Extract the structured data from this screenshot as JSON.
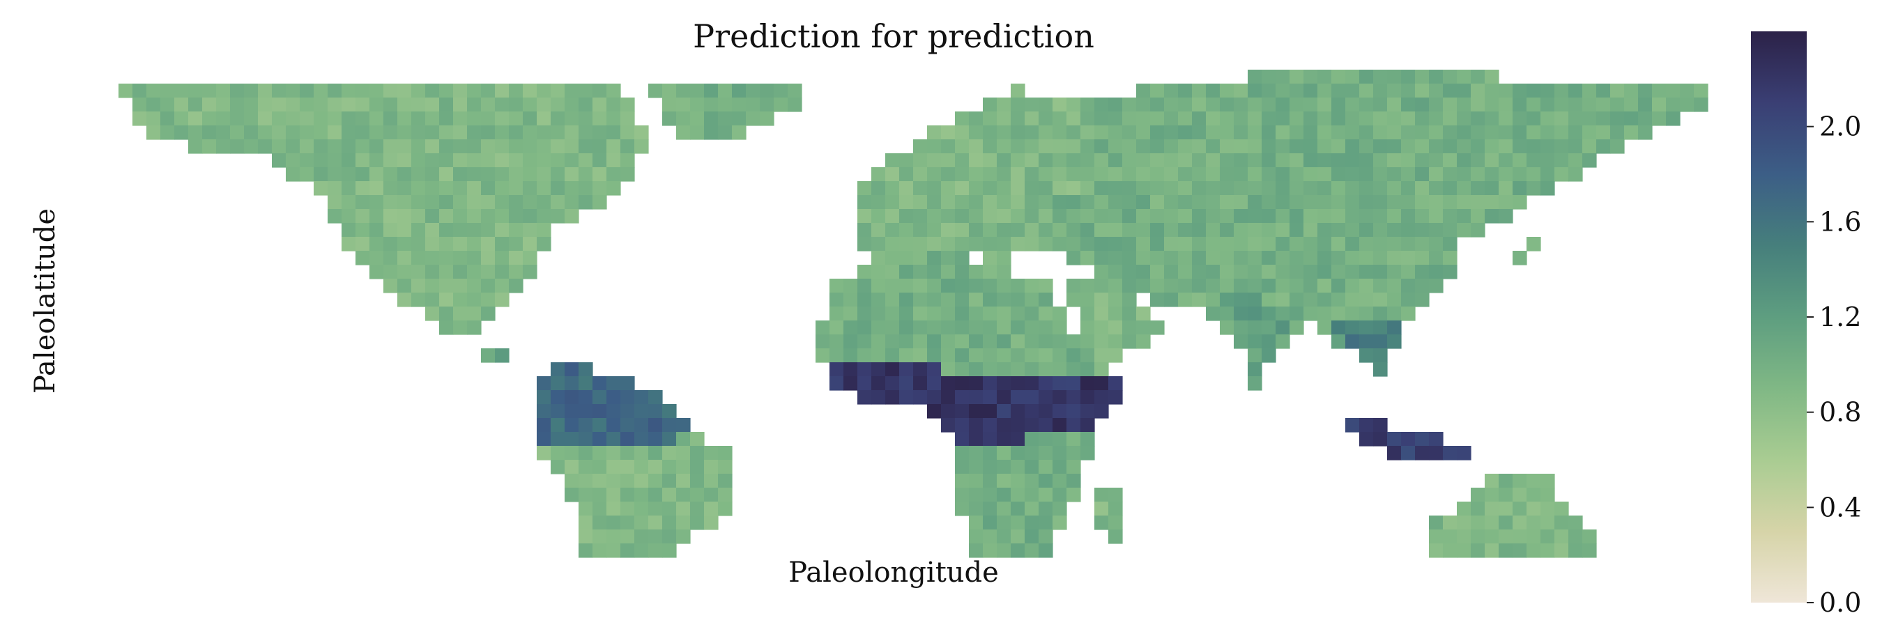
{
  "chart_data": {
    "type": "heatmap",
    "title": "Prediction for prediction",
    "xlabel": "Paleolongitude",
    "ylabel": "Paleolatitude",
    "grid": false,
    "colorbar": {
      "vmin": 0.0,
      "vmax": 2.4,
      "ticks": [
        0.0,
        0.4,
        0.8,
        1.2,
        1.6,
        2.0
      ],
      "tick_labels": [
        "0.0",
        "0.4",
        "0.8",
        "1.2",
        "1.6",
        "2.0"
      ],
      "colors": [
        "#efe6d8",
        "#d6d4a8",
        "#a9cc92",
        "#80b885",
        "#5e9e80",
        "#467f7c",
        "#3c5e86",
        "#3a3f74",
        "#2c2248"
      ]
    },
    "grid_shape": {
      "rows": 36,
      "cols": 118
    },
    "value_description": "Cell values are predicted values; cells with no land are empty.",
    "regions": [
      {
        "name": "north-america",
        "value": 0.9,
        "polygon": [
          [
            -170,
            72
          ],
          [
            -120,
            72
          ],
          [
            -60,
            72
          ],
          [
            -55,
            60
          ],
          [
            -62,
            48
          ],
          [
            -75,
            42
          ],
          [
            -82,
            30
          ],
          [
            -90,
            22
          ],
          [
            -97,
            17
          ],
          [
            -100,
            20
          ],
          [
            -106,
            24
          ],
          [
            -115,
            32
          ],
          [
            -122,
            40
          ],
          [
            -128,
            50
          ],
          [
            -140,
            58
          ],
          [
            -160,
            60
          ],
          [
            -168,
            66
          ]
        ]
      },
      {
        "name": "greenland",
        "value": 1.0,
        "polygon": [
          [
            -56,
            73
          ],
          [
            -20,
            73
          ],
          [
            -22,
            68
          ],
          [
            -40,
            60
          ],
          [
            -48,
            62
          ]
        ]
      },
      {
        "name": "central-america",
        "value": 1.1,
        "polygon": [
          [
            -97,
            17
          ],
          [
            -90,
            17
          ],
          [
            -80,
            9
          ],
          [
            -78,
            8
          ],
          [
            -84,
            12
          ],
          [
            -92,
            15
          ]
        ]
      },
      {
        "name": "south-america-north",
        "value": 1.7,
        "polygon": [
          [
            -80,
            11
          ],
          [
            -70,
            12
          ],
          [
            -60,
            10
          ],
          [
            -50,
            4
          ],
          [
            -44,
            -2
          ],
          [
            -55,
            -5
          ],
          [
            -70,
            -5
          ],
          [
            -79,
            -4
          ],
          [
            -80,
            2
          ]
        ]
      },
      {
        "name": "south-america",
        "value": 0.9,
        "polygon": [
          [
            -80,
            -4
          ],
          [
            -70,
            -5
          ],
          [
            -55,
            -5
          ],
          [
            -44,
            -2
          ],
          [
            -36,
            -8
          ],
          [
            -38,
            -20
          ],
          [
            -45,
            -24
          ],
          [
            -55,
            -34
          ],
          [
            -62,
            -40
          ],
          [
            -66,
            -46
          ],
          [
            -70,
            -55
          ],
          [
            -74,
            -50
          ],
          [
            -72,
            -40
          ],
          [
            -71,
            -30
          ],
          [
            -70,
            -18
          ],
          [
            -78,
            -8
          ]
        ]
      },
      {
        "name": "europe",
        "value": 0.9,
        "polygon": [
          [
            -10,
            37
          ],
          [
            0,
            36
          ],
          [
            10,
            37
          ],
          [
            20,
            35
          ],
          [
            30,
            36
          ],
          [
            30,
            46
          ],
          [
            40,
            50
          ],
          [
            40,
            70
          ],
          [
            25,
            72
          ],
          [
            10,
            64
          ],
          [
            0,
            58
          ],
          [
            -8,
            52
          ],
          [
            -10,
            44
          ]
        ]
      },
      {
        "name": "africa-north",
        "value": 1.0,
        "polygon": [
          [
            -17,
            21
          ],
          [
            -16,
            28
          ],
          [
            -6,
            36
          ],
          [
            10,
            37
          ],
          [
            20,
            33
          ],
          [
            32,
            31
          ],
          [
            36,
            24
          ],
          [
            43,
            12
          ],
          [
            51,
            11
          ],
          [
            40,
            10
          ],
          [
            0,
            12
          ],
          [
            -17,
            14
          ]
        ]
      },
      {
        "name": "africa-tropical",
        "value": 2.2,
        "polygon": [
          [
            -17,
            14
          ],
          [
            0,
            12
          ],
          [
            40,
            10
          ],
          [
            51,
            11
          ],
          [
            48,
            4
          ],
          [
            42,
            -2
          ],
          [
            12,
            -5
          ],
          [
            9,
            2
          ],
          [
            -8,
            4
          ],
          [
            -15,
            8
          ]
        ]
      },
      {
        "name": "africa-south",
        "value": 1.0,
        "polygon": [
          [
            12,
            -5
          ],
          [
            42,
            -2
          ],
          [
            40,
            -15
          ],
          [
            35,
            -24
          ],
          [
            32,
            -29
          ],
          [
            20,
            -35
          ],
          [
            17,
            -30
          ],
          [
            13,
            -18
          ]
        ]
      },
      {
        "name": "madagascar",
        "value": 0.9,
        "polygon": [
          [
            44,
            -13
          ],
          [
            50,
            -13
          ],
          [
            49,
            -25
          ],
          [
            44,
            -24
          ]
        ]
      },
      {
        "name": "asia",
        "value": 1.0,
        "polygon": [
          [
            30,
            46
          ],
          [
            30,
            36
          ],
          [
            36,
            36
          ],
          [
            48,
            30
          ],
          [
            56,
            26
          ],
          [
            62,
            25
          ],
          [
            68,
            23
          ],
          [
            72,
            20
          ],
          [
            78,
            8
          ],
          [
            82,
            16
          ],
          [
            90,
            22
          ],
          [
            98,
            16
          ],
          [
            104,
            10
          ],
          [
            108,
            16
          ],
          [
            110,
            22
          ],
          [
            121,
            30
          ],
          [
            122,
            40
          ],
          [
            132,
            43
          ],
          [
            142,
            50
          ],
          [
            160,
            60
          ],
          [
            170,
            65
          ],
          [
            178,
            68
          ],
          [
            178,
            74
          ],
          [
            140,
            74
          ],
          [
            100,
            76
          ],
          [
            70,
            74
          ],
          [
            40,
            70
          ],
          [
            40,
            50
          ]
        ]
      },
      {
        "name": "arabia",
        "value": 0.9,
        "polygon": [
          [
            36,
            30
          ],
          [
            48,
            30
          ],
          [
            56,
            24
          ],
          [
            58,
            20
          ],
          [
            52,
            16
          ],
          [
            44,
            12
          ],
          [
            40,
            18
          ]
        ]
      },
      {
        "name": "india",
        "value": 1.2,
        "polygon": [
          [
            68,
            23
          ],
          [
            72,
            21
          ],
          [
            78,
            8
          ],
          [
            82,
            16
          ],
          [
            88,
            22
          ],
          [
            80,
            27
          ],
          [
            72,
            27
          ]
        ]
      },
      {
        "name": "southeast-asia",
        "value": 1.5,
        "polygon": [
          [
            92,
            22
          ],
          [
            98,
            16
          ],
          [
            104,
            10
          ],
          [
            108,
            14
          ],
          [
            110,
            20
          ],
          [
            104,
            22
          ]
        ]
      },
      {
        "name": "indonesia",
        "value": 2.1,
        "polygon": [
          [
            95,
            4
          ],
          [
            110,
            -2
          ],
          [
            122,
            -4
          ],
          [
            126,
            -8
          ],
          [
            115,
            -8
          ],
          [
            105,
            -6
          ],
          [
            98,
            0
          ]
        ]
      },
      {
        "name": "japan",
        "value": 1.0,
        "polygon": [
          [
            130,
            32
          ],
          [
            136,
            34
          ],
          [
            142,
            40
          ],
          [
            141,
            45
          ],
          [
            138,
            38
          ],
          [
            132,
            35
          ]
        ]
      },
      {
        "name": "australia",
        "value": 0.9,
        "polygon": [
          [
            114,
            -22
          ],
          [
            122,
            -18
          ],
          [
            130,
            -12
          ],
          [
            137,
            -12
          ],
          [
            142,
            -11
          ],
          [
            146,
            -18
          ],
          [
            153,
            -26
          ],
          [
            150,
            -37
          ],
          [
            141,
            -38
          ],
          [
            130,
            -32
          ],
          [
            116,
            -34
          ]
        ]
      },
      {
        "name": "tasmania",
        "value": 0.9,
        "polygon": [
          [
            144,
            -41
          ],
          [
            148,
            -41
          ],
          [
            148,
            -44
          ],
          [
            145,
            -44
          ]
        ]
      },
      {
        "name": "new-zealand",
        "value": 0.9,
        "polygon": [
          [
            166,
            -35
          ],
          [
            178,
            -38
          ],
          [
            172,
            -46
          ],
          [
            167,
            -46
          ]
        ]
      },
      {
        "name": "antarctica-edge",
        "value": 0.8,
        "polygon": [
          [
            10,
            -52
          ],
          [
            175,
            -52
          ],
          [
            175,
            -56
          ],
          [
            10,
            -56
          ]
        ]
      }
    ]
  }
}
